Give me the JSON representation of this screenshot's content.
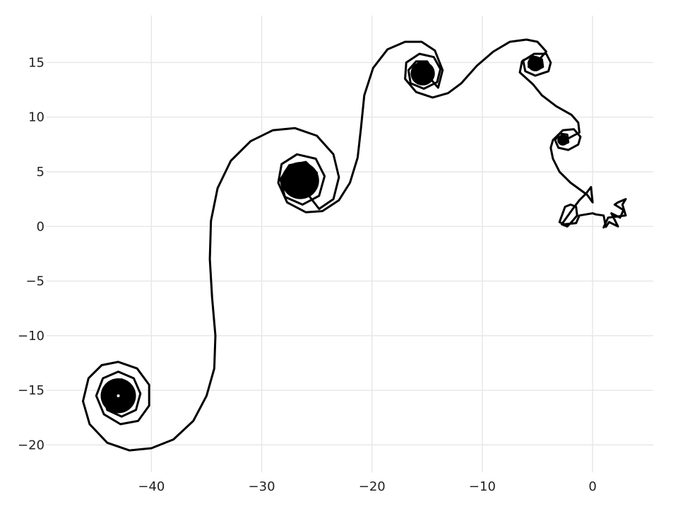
{
  "chart_data": {
    "type": "line",
    "title": "",
    "xlabel": "",
    "ylabel": "",
    "xlim": [
      -49.5,
      5.5
    ],
    "ylim": [
      -22.5,
      19.3
    ],
    "grid": true,
    "legend": "none",
    "x_ticks": [
      {
        "value": -40,
        "label": "−40"
      },
      {
        "value": -30,
        "label": "−30"
      },
      {
        "value": -20,
        "label": "−20"
      },
      {
        "value": -10,
        "label": "−10"
      },
      {
        "value": 0,
        "label": "0"
      }
    ],
    "y_ticks": [
      {
        "value": 15,
        "label": "15"
      },
      {
        "value": 10,
        "label": "10"
      },
      {
        "value": 5,
        "label": "5"
      },
      {
        "value": 0,
        "label": "0"
      },
      {
        "value": -5,
        "label": "−5"
      },
      {
        "value": -10,
        "label": "−10"
      },
      {
        "value": -15,
        "label": "−15"
      },
      {
        "value": -20,
        "label": "−20"
      }
    ],
    "colors": {
      "line": "#000000",
      "grid": "#e6e6e6",
      "background": "#ffffff",
      "text": "#222222"
    },
    "series": [
      {
        "points": [
          [
            1.0,
            -0.1
          ],
          [
            1.4,
            0.8
          ],
          [
            3.0,
            1.0
          ],
          [
            2.7,
            2.0
          ],
          [
            3.0,
            2.5
          ],
          [
            2.3,
            2.2
          ],
          [
            2.0,
            2.0
          ],
          [
            2.8,
            1.5
          ],
          [
            2.5,
            0.8
          ],
          [
            1.7,
            1.2
          ],
          [
            2.3,
            0.0
          ],
          [
            1.5,
            0.4
          ],
          [
            1.2,
            -0.05
          ],
          [
            1.0,
            1.0
          ],
          [
            0.3,
            1.1
          ],
          [
            0.0,
            1.2
          ],
          [
            -1.2,
            1.0
          ],
          [
            -1.5,
            0.3
          ],
          [
            -2.6,
            0.2
          ],
          [
            -3.0,
            0.4
          ],
          [
            -2.5,
            1.8
          ],
          [
            -2.0,
            2.0
          ],
          [
            -1.5,
            1.8
          ],
          [
            -1.4,
            1.0
          ],
          [
            -2.0,
            0.3
          ],
          [
            -2.3,
            0.0
          ],
          [
            -2.8,
            0.2
          ],
          [
            -1.8,
            1.6
          ],
          [
            -1.2,
            2.4
          ],
          [
            -0.6,
            3.0
          ],
          [
            -0.15,
            3.6
          ],
          [
            0.0,
            2.2
          ],
          [
            -0.5,
            2.9
          ],
          [
            -2.0,
            4.0
          ],
          [
            -3.0,
            5.0
          ],
          [
            -3.6,
            6.2
          ],
          [
            -3.8,
            7.2
          ],
          [
            -3.6,
            7.9
          ],
          [
            -2.7,
            8.8
          ],
          [
            -1.7,
            8.9
          ],
          [
            -1.1,
            8.2
          ],
          [
            -1.3,
            7.5
          ],
          [
            -2.2,
            7.0
          ],
          [
            -3.1,
            7.2
          ],
          [
            -3.4,
            7.9
          ],
          [
            -3.0,
            8.5
          ],
          [
            -2.3,
            8.4
          ],
          [
            -2.2,
            7.7
          ],
          [
            -2.7,
            7.5
          ],
          [
            -3.0,
            7.9
          ],
          [
            -2.7,
            8.2
          ],
          [
            -2.5,
            7.9
          ],
          [
            -1.2,
            8.6
          ],
          [
            -1.3,
            9.5
          ],
          [
            -1.9,
            10.2
          ],
          [
            -3.3,
            11.0
          ],
          [
            -4.6,
            12.0
          ],
          [
            -5.4,
            13.0
          ],
          [
            -6.6,
            14.1
          ],
          [
            -6.4,
            15.1
          ],
          [
            -5.3,
            15.8
          ],
          [
            -4.2,
            15.8
          ],
          [
            -3.8,
            15.0
          ],
          [
            -4.0,
            14.2
          ],
          [
            -5.2,
            13.8
          ],
          [
            -6.1,
            14.2
          ],
          [
            -6.3,
            15.2
          ],
          [
            -5.5,
            15.6
          ],
          [
            -4.6,
            15.3
          ],
          [
            -4.5,
            14.6
          ],
          [
            -5.1,
            14.3
          ],
          [
            -5.8,
            14.6
          ],
          [
            -5.7,
            15.1
          ],
          [
            -5.0,
            15.2
          ],
          [
            -4.9,
            14.8
          ],
          [
            -5.4,
            14.7
          ],
          [
            -5.5,
            15.0
          ],
          [
            -5.1,
            15.0
          ],
          [
            -4.2,
            16.0
          ],
          [
            -5.0,
            16.9
          ],
          [
            -6.0,
            17.1
          ],
          [
            -7.5,
            16.9
          ],
          [
            -9.0,
            16.0
          ],
          [
            -10.5,
            14.7
          ],
          [
            -11.9,
            13.1
          ],
          [
            -13.1,
            12.2
          ],
          [
            -14.5,
            11.8
          ],
          [
            -16.0,
            12.3
          ],
          [
            -17.0,
            13.5
          ],
          [
            -16.9,
            15.0
          ],
          [
            -15.7,
            15.8
          ],
          [
            -14.4,
            15.5
          ],
          [
            -13.8,
            14.4
          ],
          [
            -14.1,
            13.2
          ],
          [
            -15.3,
            12.6
          ],
          [
            -16.5,
            13.1
          ],
          [
            -16.7,
            14.3
          ],
          [
            -16.0,
            15.1
          ],
          [
            -15.0,
            15.1
          ],
          [
            -14.5,
            14.3
          ],
          [
            -14.8,
            13.4
          ],
          [
            -15.7,
            13.2
          ],
          [
            -16.2,
            13.9
          ],
          [
            -15.8,
            14.6
          ],
          [
            -15.1,
            14.5
          ],
          [
            -15.0,
            13.9
          ],
          [
            -15.5,
            13.6
          ],
          [
            -15.7,
            14.1
          ],
          [
            -15.3,
            14.2
          ],
          [
            -14.0,
            12.7
          ],
          [
            -13.6,
            14.3
          ],
          [
            -14.3,
            16.1
          ],
          [
            -15.5,
            16.9
          ],
          [
            -17.0,
            16.9
          ],
          [
            -18.6,
            16.2
          ],
          [
            -19.9,
            14.5
          ],
          [
            -20.7,
            12.0
          ],
          [
            -21.0,
            9.0
          ],
          [
            -21.3,
            6.3
          ],
          [
            -22.0,
            4.0
          ],
          [
            -23.0,
            2.4
          ],
          [
            -24.5,
            1.4
          ],
          [
            -26.0,
            1.3
          ],
          [
            -27.7,
            2.2
          ],
          [
            -28.5,
            4.0
          ],
          [
            -28.2,
            5.7
          ],
          [
            -26.8,
            6.6
          ],
          [
            -25.1,
            6.2
          ],
          [
            -24.3,
            4.6
          ],
          [
            -24.8,
            2.8
          ],
          [
            -26.3,
            2.0
          ],
          [
            -27.9,
            2.7
          ],
          [
            -28.3,
            4.3
          ],
          [
            -27.5,
            5.6
          ],
          [
            -26.0,
            5.9
          ],
          [
            -25.0,
            4.9
          ],
          [
            -25.2,
            3.4
          ],
          [
            -26.4,
            2.7
          ],
          [
            -27.5,
            3.3
          ],
          [
            -27.6,
            4.6
          ],
          [
            -26.7,
            5.2
          ],
          [
            -25.7,
            4.8
          ],
          [
            -25.6,
            3.7
          ],
          [
            -26.4,
            3.2
          ],
          [
            -27.1,
            3.7
          ],
          [
            -26.9,
            4.5
          ],
          [
            -26.3,
            4.6
          ],
          [
            -26.0,
            4.0
          ],
          [
            -26.5,
            3.7
          ],
          [
            -26.7,
            4.1
          ],
          [
            -24.8,
            1.6
          ],
          [
            -23.5,
            2.5
          ],
          [
            -23.0,
            4.5
          ],
          [
            -23.5,
            6.6
          ],
          [
            -25.0,
            8.3
          ],
          [
            -27.0,
            9.0
          ],
          [
            -29.0,
            8.8
          ],
          [
            -31.0,
            7.8
          ],
          [
            -32.8,
            6.0
          ],
          [
            -34.0,
            3.5
          ],
          [
            -34.6,
            0.5
          ],
          [
            -34.7,
            -3.0
          ],
          [
            -34.5,
            -6.5
          ],
          [
            -34.2,
            -10.0
          ],
          [
            -34.3,
            -13.0
          ],
          [
            -35.0,
            -15.5
          ],
          [
            -36.2,
            -17.8
          ],
          [
            -38.0,
            -19.5
          ],
          [
            -40.0,
            -20.3
          ],
          [
            -42.0,
            -20.5
          ],
          [
            -44.0,
            -19.8
          ],
          [
            -45.6,
            -18.1
          ],
          [
            -46.2,
            -16.0
          ],
          [
            -45.7,
            -13.9
          ],
          [
            -44.5,
            -12.7
          ],
          [
            -43.0,
            -12.4
          ],
          [
            -41.3,
            -13.0
          ],
          [
            -40.2,
            -14.5
          ],
          [
            -40.2,
            -16.4
          ],
          [
            -41.2,
            -17.8
          ],
          [
            -42.8,
            -18.1
          ],
          [
            -44.3,
            -17.2
          ],
          [
            -45.0,
            -15.5
          ],
          [
            -44.4,
            -13.9
          ],
          [
            -43.0,
            -13.3
          ],
          [
            -41.6,
            -13.9
          ],
          [
            -41.0,
            -15.3
          ],
          [
            -41.4,
            -16.8
          ],
          [
            -42.7,
            -17.4
          ],
          [
            -44.0,
            -16.8
          ],
          [
            -44.4,
            -15.4
          ],
          [
            -43.8,
            -14.3
          ],
          [
            -42.7,
            -14.0
          ],
          [
            -41.8,
            -14.7
          ],
          [
            -41.7,
            -16.0
          ],
          [
            -42.5,
            -16.8
          ],
          [
            -43.5,
            -16.5
          ],
          [
            -43.9,
            -15.4
          ],
          [
            -43.3,
            -14.7
          ],
          [
            -42.4,
            -14.9
          ],
          [
            -42.2,
            -15.8
          ],
          [
            -42.9,
            -16.2
          ],
          [
            -43.4,
            -15.6
          ],
          [
            -43.0,
            -15.2
          ],
          [
            -42.7,
            -15.6
          ],
          [
            -43.0,
            -15.8
          ]
        ]
      }
    ]
  }
}
